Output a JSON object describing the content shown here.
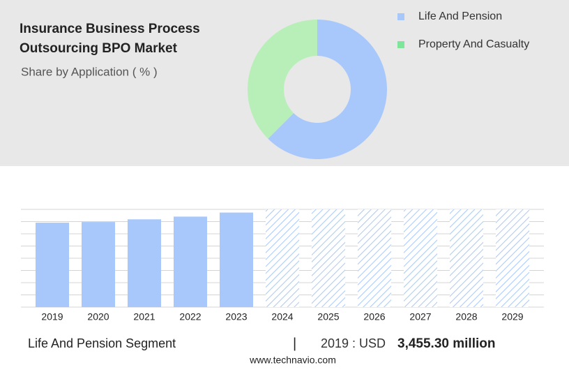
{
  "chart_data": [
    {
      "type": "donut",
      "title": "Insurance Business Process Outsourcing BPO Market",
      "subtitle": "Share by Application ( % )",
      "categories": [
        "Life And Pension",
        "Property And Casualty"
      ],
      "values": [
        62.5,
        37.5
      ],
      "colors": [
        "#a8c8fc",
        "#b8efb8"
      ],
      "legend_colors": [
        "#a8c8fc",
        "#7ee69a"
      ]
    },
    {
      "type": "bar",
      "categories": [
        "2019",
        "2020",
        "2021",
        "2022",
        "2023",
        "2024",
        "2025",
        "2026",
        "2027",
        "2028",
        "2029"
      ],
      "values": [
        3455.3,
        3483,
        3593,
        3704,
        3870,
        null,
        null,
        null,
        null,
        null,
        null
      ],
      "color": "#a8c8fc",
      "ylim": [
        0,
        4000
      ],
      "yticks": [
        0,
        500,
        1000,
        1500,
        2000,
        2500,
        3000,
        3500,
        4000
      ],
      "grid": true
    }
  ],
  "footer": {
    "segment": "Life And Pension Segment",
    "separator": "|",
    "year_label": "2019 : USD",
    "value": "3,455.30 million",
    "source": "www.technavio.com"
  }
}
